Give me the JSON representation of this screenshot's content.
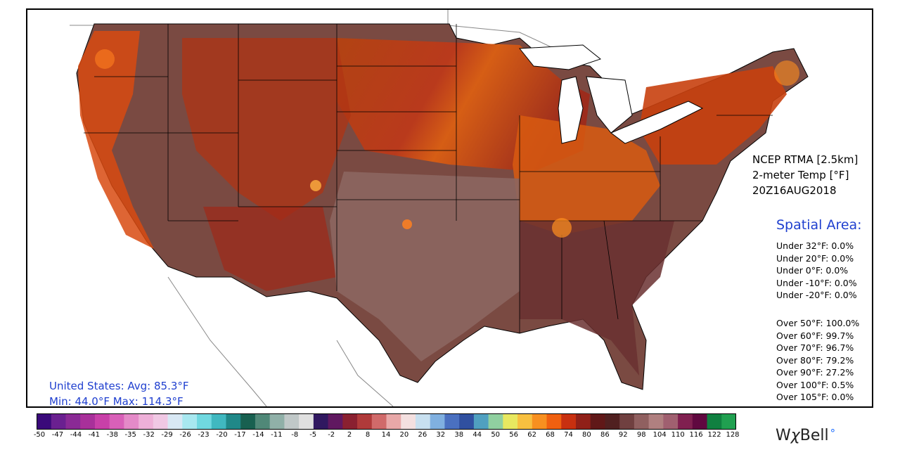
{
  "product": {
    "source": "NCEP RTMA [2.5km]",
    "variable": "2-meter Temp [°F]",
    "valid_time": "20Z16AUG2018"
  },
  "spatial_area": {
    "title": "Spatial Area:",
    "under": [
      "Under 32°F: 0.0%",
      "Under 20°F: 0.0%",
      "Under 0°F: 0.0%",
      "Under -10°F: 0.0%",
      "Under -20°F: 0.0%"
    ],
    "over": [
      "Over 50°F: 100.0%",
      "Over 60°F: 99.7%",
      "Over 70°F: 96.7%",
      "Over 80°F: 79.2%",
      "Over 90°F: 27.2%",
      "Over 100°F: 0.5%",
      "Over 105°F: 0.0%"
    ]
  },
  "stats": {
    "line1": "United States: Avg:  85.3°F",
    "line2": "Min:  44.0°F Max: 114.3°F"
  },
  "colorbar": {
    "labels": [
      "-50",
      "-47",
      "-44",
      "-41",
      "-38",
      "-35",
      "-32",
      "-29",
      "-26",
      "-23",
      "-20",
      "-17",
      "-14",
      "-11",
      "-8",
      "-5",
      "-2",
      "2",
      "8",
      "14",
      "20",
      "26",
      "32",
      "38",
      "44",
      "50",
      "56",
      "62",
      "68",
      "74",
      "80",
      "86",
      "92",
      "98",
      "104",
      "110",
      "116",
      "122",
      "128"
    ],
    "colors": [
      "#3a0a7a",
      "#6a2090",
      "#8a2a95",
      "#a8309a",
      "#c840a8",
      "#d860b8",
      "#e48ac8",
      "#eeb0d8",
      "#f0c8e4",
      "#d8e8f4",
      "#a8e8f0",
      "#70d8e0",
      "#40b8c0",
      "#208888",
      "#186050",
      "#508878",
      "#90b0a8",
      "#c0c8c8",
      "#e0e0e0",
      "#301860",
      "#601860",
      "#8a2030",
      "#b03a3a",
      "#d06a6a",
      "#e8a8a8",
      "#f4e0e0",
      "#c8e0f0",
      "#80b0e0",
      "#4a70c0",
      "#3050a0",
      "#50a0c0",
      "#90d0a0",
      "#e8e860",
      "#f8c040",
      "#f89020",
      "#f06010",
      "#c83010",
      "#902018",
      "#601818",
      "#502020",
      "#704040",
      "#906060",
      "#b08080",
      "#a06070",
      "#802050",
      "#600840",
      "#108040",
      "#20a050"
    ]
  },
  "brand": {
    "name": "WxBell"
  }
}
